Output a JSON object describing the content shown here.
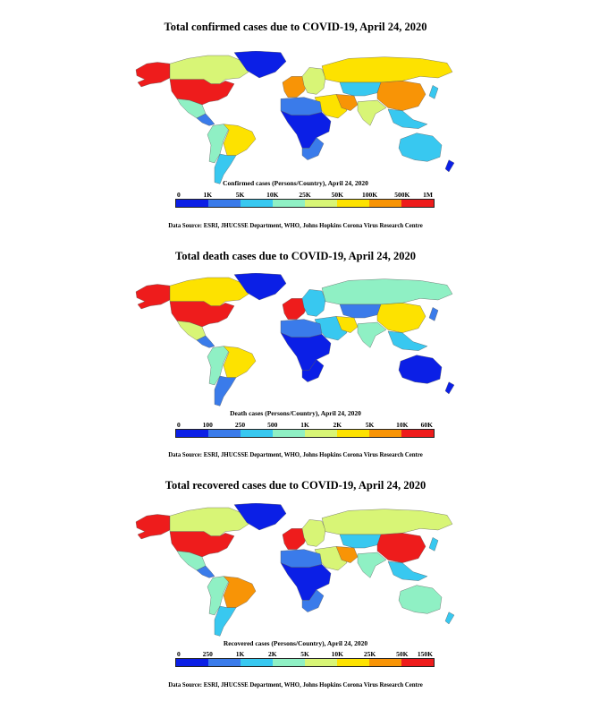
{
  "colors": [
    "#0b1fe6",
    "#3a7bea",
    "#38c8f0",
    "#8ff0c4",
    "#d8f576",
    "#fde200",
    "#f89406",
    "#ee1c1c"
  ],
  "maps": [
    {
      "title": "Total confirmed cases due to COVID-19, April 24, 2020",
      "legend_title": "Confirmed cases (Persons/Country), April 24, 2020",
      "ticks": [
        "0",
        "1K",
        "5K",
        "10K",
        "25K",
        "50K",
        "100K",
        "500K",
        "1M"
      ],
      "source": "Data Source: ESRI, JHUCSSE Department, WHO, Johns Hopkins Corona Virus Research Centre",
      "regions": {
        "canada": 4,
        "alaska": 7,
        "usa": 7,
        "greenland": 0,
        "mexico": 3,
        "central-america": 1,
        "brazil": 5,
        "south-america-west": 3,
        "south-america-south": 2,
        "western-europe": 6,
        "eastern-europe": 4,
        "russia": 5,
        "middle-east": 5,
        "iran": 6,
        "central-asia": 2,
        "china": 6,
        "india": 4,
        "southeast-asia": 2,
        "japan": 2,
        "north-africa": 1,
        "sub-saharan-africa": 0,
        "southern-africa": 1,
        "australia": 2,
        "new-zealand": 0
      }
    },
    {
      "title": "Total death cases due to COVID-19, April 24, 2020",
      "legend_title": "Death cases (Persons/Country), April 24, 2020",
      "ticks": [
        "0",
        "100",
        "250",
        "500",
        "1K",
        "2K",
        "5K",
        "10K",
        "60K"
      ],
      "source": "Data Source: ESRI, JHUCSSE Department, WHO, Johns Hopkins Corona Virus Research Centre",
      "regions": {
        "canada": 5,
        "alaska": 7,
        "usa": 7,
        "greenland": 0,
        "mexico": 4,
        "central-america": 1,
        "brazil": 5,
        "south-america-west": 3,
        "south-america-south": 1,
        "western-europe": 7,
        "eastern-europe": 2,
        "russia": 3,
        "middle-east": 2,
        "iran": 5,
        "central-asia": 1,
        "china": 5,
        "india": 3,
        "southeast-asia": 2,
        "japan": 1,
        "north-africa": 1,
        "sub-saharan-africa": 0,
        "southern-africa": 0,
        "australia": 0,
        "new-zealand": 0
      }
    },
    {
      "title": "Total recovered cases due to COVID-19, April 24, 2020",
      "legend_title": "Recovered cases (Persons/Country), April 24, 2020",
      "ticks": [
        "0",
        "250",
        "1K",
        "2K",
        "5K",
        "10K",
        "25K",
        "50K",
        "150K"
      ],
      "source": "Data Source: ESRI, JHUCSSE Department, WHO, Johns Hopkins Corona Virus Research Centre",
      "regions": {
        "canada": 4,
        "alaska": 7,
        "usa": 7,
        "greenland": 0,
        "mexico": 3,
        "central-america": 1,
        "brazil": 6,
        "south-america-west": 3,
        "south-america-south": 2,
        "western-europe": 7,
        "eastern-europe": 4,
        "russia": 4,
        "middle-east": 4,
        "iran": 6,
        "central-asia": 2,
        "china": 7,
        "india": 3,
        "southeast-asia": 2,
        "japan": 2,
        "north-africa": 1,
        "sub-saharan-africa": 0,
        "southern-africa": 1,
        "australia": 3,
        "new-zealand": 2
      }
    }
  ]
}
